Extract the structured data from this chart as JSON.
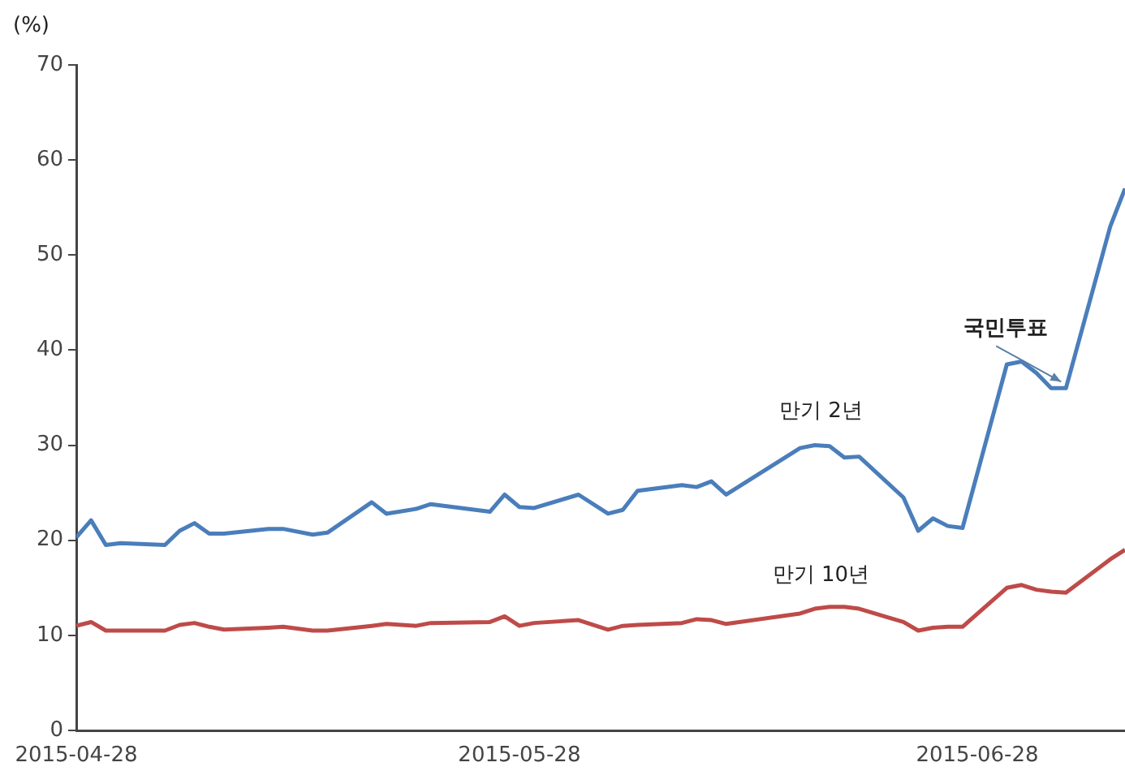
{
  "chart_data": {
    "type": "line",
    "ylabel": "(%)",
    "legend": false,
    "grid": false,
    "marker": "none",
    "line_style": "solid",
    "x": [
      "2015-04-28",
      "2015-04-29",
      "2015-04-30",
      "2015-05-01",
      "2015-05-04",
      "2015-05-05",
      "2015-05-06",
      "2015-05-07",
      "2015-05-08",
      "2015-05-11",
      "2015-05-12",
      "2015-05-14",
      "2015-05-15",
      "2015-05-18",
      "2015-05-19",
      "2015-05-21",
      "2015-05-22",
      "2015-05-26",
      "2015-05-27",
      "2015-05-28",
      "2015-05-29",
      "2015-06-01",
      "2015-06-03",
      "2015-06-04",
      "2015-06-05",
      "2015-06-08",
      "2015-06-09",
      "2015-06-10",
      "2015-06-11",
      "2015-06-16",
      "2015-06-17",
      "2015-06-18",
      "2015-06-19",
      "2015-06-20",
      "2015-06-23",
      "2015-06-24",
      "2015-06-25",
      "2015-06-26",
      "2015-06-27",
      "2015-06-30",
      "2015-07-01",
      "2015-07-02",
      "2015-07-03",
      "2015-07-04",
      "2015-07-07",
      "2015-07-08"
    ],
    "xlim": [
      "2015-04-28",
      "2015-07-08"
    ],
    "xticks": [
      "2015-04-28",
      "2015-05-28",
      "2015-06-28"
    ],
    "ylim": [
      0,
      70
    ],
    "yticks": [
      0,
      10,
      20,
      30,
      40,
      50,
      60,
      70
    ],
    "series": [
      {
        "name": "만기 2년",
        "color": "#4a7ebb",
        "values": [
          20.3,
          22.1,
          19.5,
          19.7,
          19.5,
          21.0,
          21.8,
          20.7,
          20.7,
          21.2,
          21.2,
          20.6,
          20.8,
          24.0,
          22.8,
          23.3,
          23.8,
          23.0,
          24.8,
          23.5,
          23.4,
          24.8,
          22.8,
          23.2,
          25.2,
          25.8,
          25.6,
          26.2,
          24.8,
          29.7,
          30.0,
          29.9,
          28.7,
          28.8,
          24.5,
          21.0,
          22.3,
          21.5,
          21.3,
          38.5,
          38.8,
          37.6,
          36.0,
          36.0,
          53.0,
          57.0
        ]
      },
      {
        "name": "만기 10년",
        "color": "#be4b48",
        "values": [
          11.0,
          11.4,
          10.5,
          10.5,
          10.5,
          11.1,
          11.3,
          10.9,
          10.6,
          10.8,
          10.9,
          10.5,
          10.5,
          11.0,
          11.2,
          11.0,
          11.3,
          11.4,
          12.0,
          11.0,
          11.3,
          11.6,
          10.6,
          11.0,
          11.1,
          11.3,
          11.7,
          11.6,
          11.2,
          12.3,
          12.8,
          13.0,
          13.0,
          12.8,
          11.4,
          10.5,
          10.8,
          10.9,
          10.9,
          15.0,
          15.3,
          14.8,
          14.6,
          14.5,
          18.0,
          19.0
        ]
      }
    ],
    "annotations": [
      {
        "text": "국민투표",
        "x": "2015-07-04",
        "y": 36
      }
    ]
  }
}
